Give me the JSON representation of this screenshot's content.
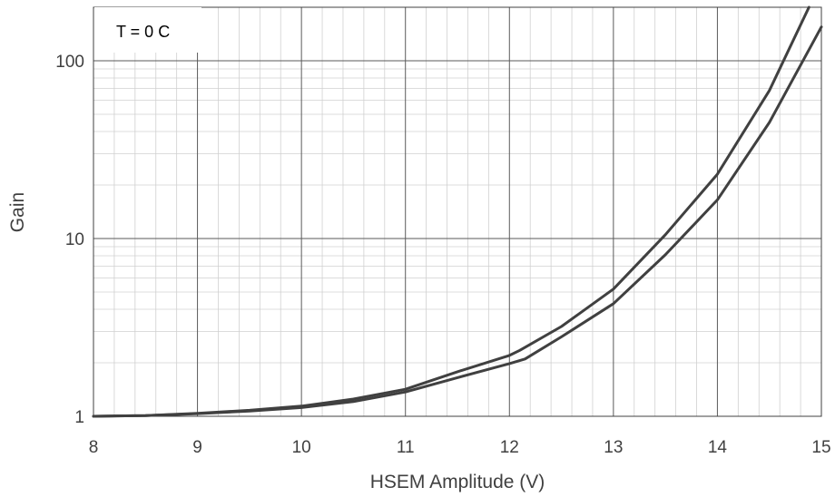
{
  "chart_data": {
    "type": "line",
    "title": "",
    "xlabel": "HSEM Amplitude (V)",
    "ylabel": "Gain",
    "annotation": "T = 0 C",
    "xlim": [
      8,
      15
    ],
    "ylim": [
      1,
      200
    ],
    "yscale": "log",
    "grid": true,
    "legend": "none",
    "x_ticks": [
      "8",
      "9",
      "10",
      "11",
      "12",
      "13",
      "14",
      "15"
    ],
    "y_ticks": [
      "1",
      "10",
      "100"
    ],
    "line_color": "#404040",
    "series": [
      {
        "x": [
          8.0,
          8.5,
          9.0,
          9.5,
          10.0,
          10.5,
          11.0,
          11.5,
          12.0,
          12.1,
          12.5,
          13.0,
          13.5,
          14.0,
          14.5,
          14.88
        ],
        "y": [
          1.0,
          1.01,
          1.04,
          1.08,
          1.14,
          1.25,
          1.42,
          1.78,
          2.2,
          2.35,
          3.2,
          5.2,
          10.5,
          23,
          68,
          200
        ]
      },
      {
        "x": [
          8.0,
          8.5,
          9.0,
          9.5,
          10.0,
          10.5,
          11.0,
          11.5,
          12.0,
          12.15,
          12.5,
          13.0,
          13.5,
          14.0,
          14.5,
          15.0
        ],
        "y": [
          1.0,
          1.01,
          1.035,
          1.07,
          1.12,
          1.21,
          1.37,
          1.65,
          1.98,
          2.1,
          2.8,
          4.3,
          8.1,
          16.5,
          45,
          155
        ]
      }
    ]
  }
}
